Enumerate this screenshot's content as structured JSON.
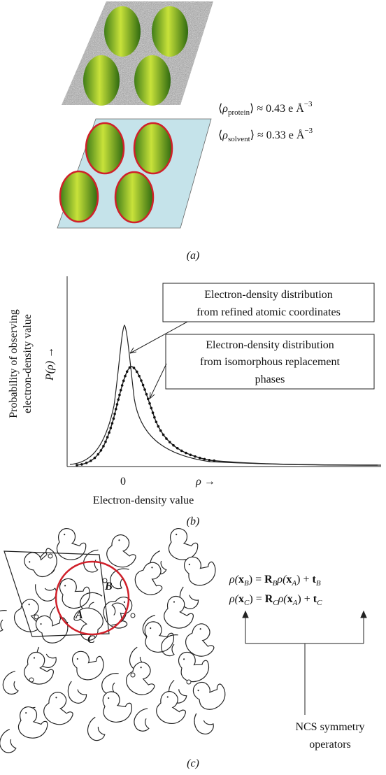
{
  "panel_a": {
    "label": "(a)",
    "protein": [
      "⟨",
      "ρ",
      "protein",
      "⟩ ≈ 0.43 e Å",
      "−3"
    ],
    "solvent": [
      "⟨",
      "ρ",
      "solvent",
      "⟩ ≈ 0.33 e Å",
      "−3"
    ]
  },
  "panel_b": {
    "label": "(b)",
    "y_label": [
      "Probability of observing",
      "electron-density value"
    ],
    "y_symbol": "P(ρ) →",
    "x_zero": "0",
    "x_symbol": "ρ →",
    "x_label": "Electron-density value",
    "callout_refined": [
      "Electron-density distribution",
      "from refined atomic coordinates"
    ],
    "callout_isomorphous": [
      "Electron-density distribution",
      "from isomorphous replacement",
      "phases"
    ]
  },
  "panel_c": {
    "label": "(c)",
    "molecules": [
      "A",
      "B",
      "C"
    ],
    "equation_b": [
      "ρ(",
      "x",
      "B",
      ") = ",
      "R",
      "B",
      "ρ(",
      "x",
      "A",
      ") + ",
      "t",
      "B"
    ],
    "equation_c": [
      "ρ(",
      "x",
      "C",
      ") = ",
      "R",
      "C",
      "ρ(",
      "x",
      "A",
      ") + ",
      "t",
      "C"
    ],
    "operators": [
      "NCS symmetry",
      "operators"
    ]
  }
}
